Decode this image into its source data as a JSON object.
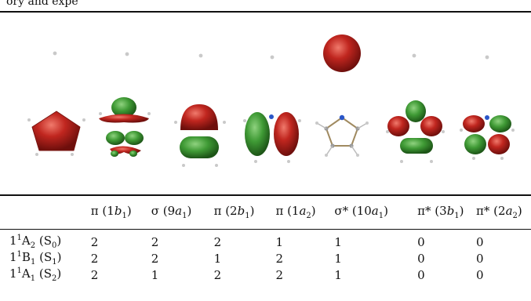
{
  "caption_tail": "ory and expe",
  "orbitals": [
    {
      "name": "pi-1b1-orbital"
    },
    {
      "name": "sigma-9a1-orbital"
    },
    {
      "name": "pi-2b1-orbital"
    },
    {
      "name": "pi-1a2-orbital"
    },
    {
      "name": "sigma-star-10a1-orbital"
    },
    {
      "name": "pi-star-3b1-orbital"
    },
    {
      "name": "pi-star-2a2-orbital"
    }
  ],
  "colors": {
    "positive_lobe": "#b8221d",
    "negative_lobe": "#3f9a35",
    "atom": "#c9c9c9",
    "nitrogen": "#2a56c8"
  },
  "table": {
    "headers": [
      {
        "sym": "π",
        "label": "1",
        "sub_letter": "b",
        "sub": "1"
      },
      {
        "sym": "σ",
        "label": "9",
        "sub_letter": "a",
        "sub": "1"
      },
      {
        "sym": "π",
        "label": "2",
        "sub_letter": "b",
        "sub": "1"
      },
      {
        "sym": "π",
        "label": "1",
        "sub_letter": "a",
        "sub": "2"
      },
      {
        "sym": "σ*",
        "label": "10",
        "sub_letter": "a",
        "sub": "1"
      },
      {
        "sym": "π*",
        "label": "3",
        "sub_letter": "b",
        "sub": "1"
      },
      {
        "sym": "π*",
        "label": "2",
        "sub_letter": "a",
        "sub": "2"
      }
    ],
    "rows": [
      {
        "pre": "1",
        "sup": "1",
        "letter": "A",
        "sub": "2",
        "state": "S",
        "state_sub": "0",
        "values": [
          "2",
          "2",
          "2",
          "1",
          "1",
          "0",
          "0"
        ]
      },
      {
        "pre": "1",
        "sup": "1",
        "letter": "B",
        "sub": "1",
        "state": "S",
        "state_sub": "1",
        "values": [
          "2",
          "2",
          "1",
          "2",
          "1",
          "0",
          "0"
        ]
      },
      {
        "pre": "1",
        "sup": "1",
        "letter": "A",
        "sub": "1",
        "state": "S",
        "state_sub": "2",
        "values": [
          "2",
          "1",
          "2",
          "2",
          "1",
          "0",
          "0"
        ]
      }
    ]
  }
}
